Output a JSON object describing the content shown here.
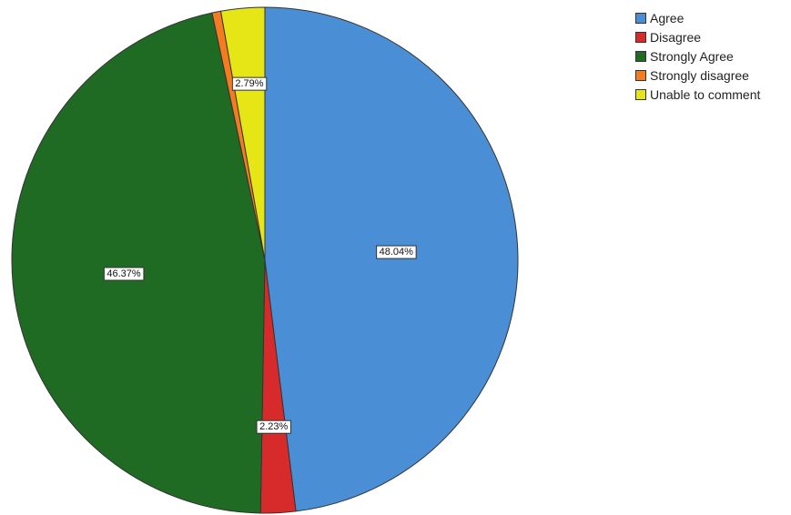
{
  "chart_data": {
    "type": "pie",
    "title": "",
    "start_angle_deg": 0,
    "direction": "clockwise",
    "legend_position": "top-right",
    "slices": [
      {
        "name": "Agree",
        "value": 48.04,
        "label": "48.04%",
        "color": "#4a8fd6"
      },
      {
        "name": "Disagree",
        "value": 2.23,
        "label": "2.23%",
        "color": "#d72b2b"
      },
      {
        "name": "Strongly Agree",
        "value": 46.37,
        "label": "46.37%",
        "color": "#1f6b24"
      },
      {
        "name": "Strongly disagree",
        "value": 0.56,
        "label": "",
        "color": "#f47b20"
      },
      {
        "name": "Unable to comment",
        "value": 2.79,
        "label": "2.79%",
        "color": "#e6e617"
      }
    ]
  },
  "legend": {
    "items": [
      {
        "label": "Agree",
        "color": "#4a8fd6"
      },
      {
        "label": "Disagree",
        "color": "#d72b2b"
      },
      {
        "label": "Strongly Agree",
        "color": "#1f6b24"
      },
      {
        "label": "Strongly disagree",
        "color": "#f47b20"
      },
      {
        "label": "Unable to comment",
        "color": "#e6e617"
      }
    ]
  }
}
